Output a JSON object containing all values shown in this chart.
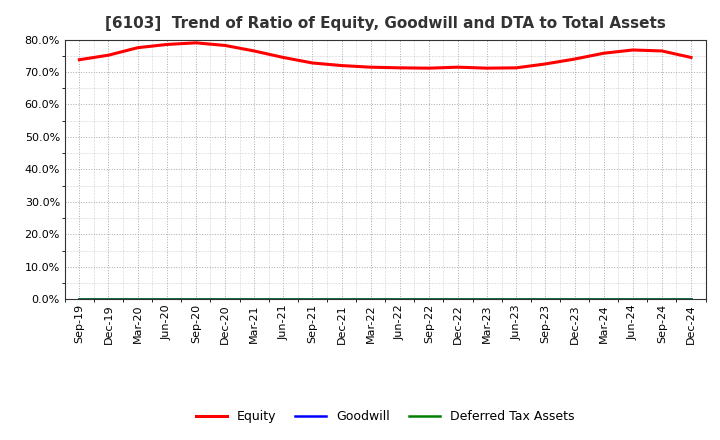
{
  "title": "[6103]  Trend of Ratio of Equity, Goodwill and DTA to Total Assets",
  "x_labels": [
    "Sep-19",
    "Dec-19",
    "Mar-20",
    "Jun-20",
    "Sep-20",
    "Dec-20",
    "Mar-21",
    "Jun-21",
    "Sep-21",
    "Dec-21",
    "Mar-22",
    "Jun-22",
    "Sep-22",
    "Dec-22",
    "Mar-23",
    "Jun-23",
    "Sep-23",
    "Dec-23",
    "Mar-24",
    "Jun-24",
    "Sep-24",
    "Dec-24"
  ],
  "equity": [
    73.8,
    75.2,
    77.5,
    78.5,
    79.0,
    78.2,
    76.5,
    74.5,
    72.8,
    72.0,
    71.5,
    71.3,
    71.2,
    71.5,
    71.2,
    71.3,
    72.5,
    74.0,
    75.8,
    76.8,
    76.5,
    74.5
  ],
  "goodwill": [
    0.0,
    0.0,
    0.0,
    0.0,
    0.0,
    0.0,
    0.0,
    0.0,
    0.0,
    0.0,
    0.0,
    0.0,
    0.0,
    0.0,
    0.0,
    0.0,
    0.0,
    0.0,
    0.0,
    0.0,
    0.0,
    0.0
  ],
  "dta": [
    0.0,
    0.0,
    0.0,
    0.0,
    0.0,
    0.0,
    0.0,
    0.0,
    0.0,
    0.0,
    0.0,
    0.0,
    0.0,
    0.0,
    0.0,
    0.0,
    0.0,
    0.0,
    0.0,
    0.0,
    0.0,
    0.0
  ],
  "equity_color": "#ff0000",
  "goodwill_color": "#0000ff",
  "dta_color": "#008000",
  "ylim": [
    0,
    80
  ],
  "yticks": [
    0,
    10,
    20,
    30,
    40,
    50,
    60,
    70,
    80
  ],
  "background_color": "#ffffff",
  "plot_bg_color": "#ffffff",
  "grid_color": "#aaaaaa",
  "title_fontsize": 11,
  "tick_fontsize": 8,
  "legend_labels": [
    "Equity",
    "Goodwill",
    "Deferred Tax Assets"
  ]
}
